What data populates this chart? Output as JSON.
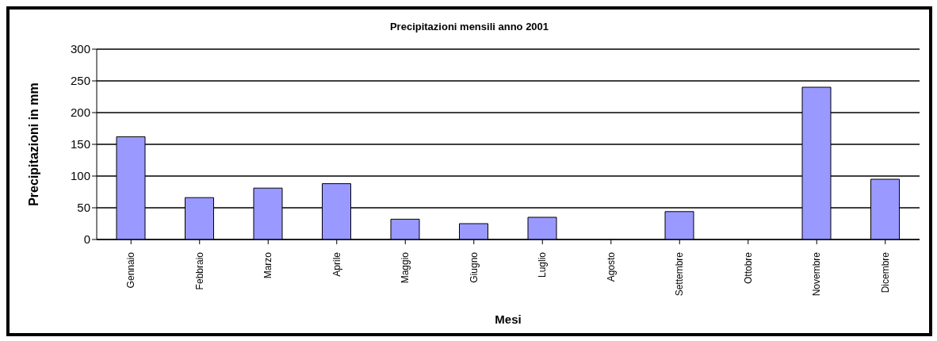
{
  "chart_data": {
    "type": "bar",
    "title": "Precipitazioni mensili anno 2001",
    "xlabel": "Mesi",
    "ylabel": "Precipitazioni in mm",
    "categories": [
      "Gennaio",
      "Febbraio",
      "Marzo",
      "Aprile",
      "Maggio",
      "Giugno",
      "Luglio",
      "Agosto",
      "Settembre",
      "Ottobre",
      "Novembre",
      "Dicembre"
    ],
    "values": [
      162,
      66,
      81,
      88,
      32,
      25,
      35,
      0,
      44,
      0,
      240,
      95
    ],
    "color": "#9999ff",
    "ylim": [
      0,
      300
    ],
    "yticks": [
      0,
      50,
      100,
      150,
      200,
      250,
      300
    ],
    "grid": "y",
    "legend": false
  }
}
